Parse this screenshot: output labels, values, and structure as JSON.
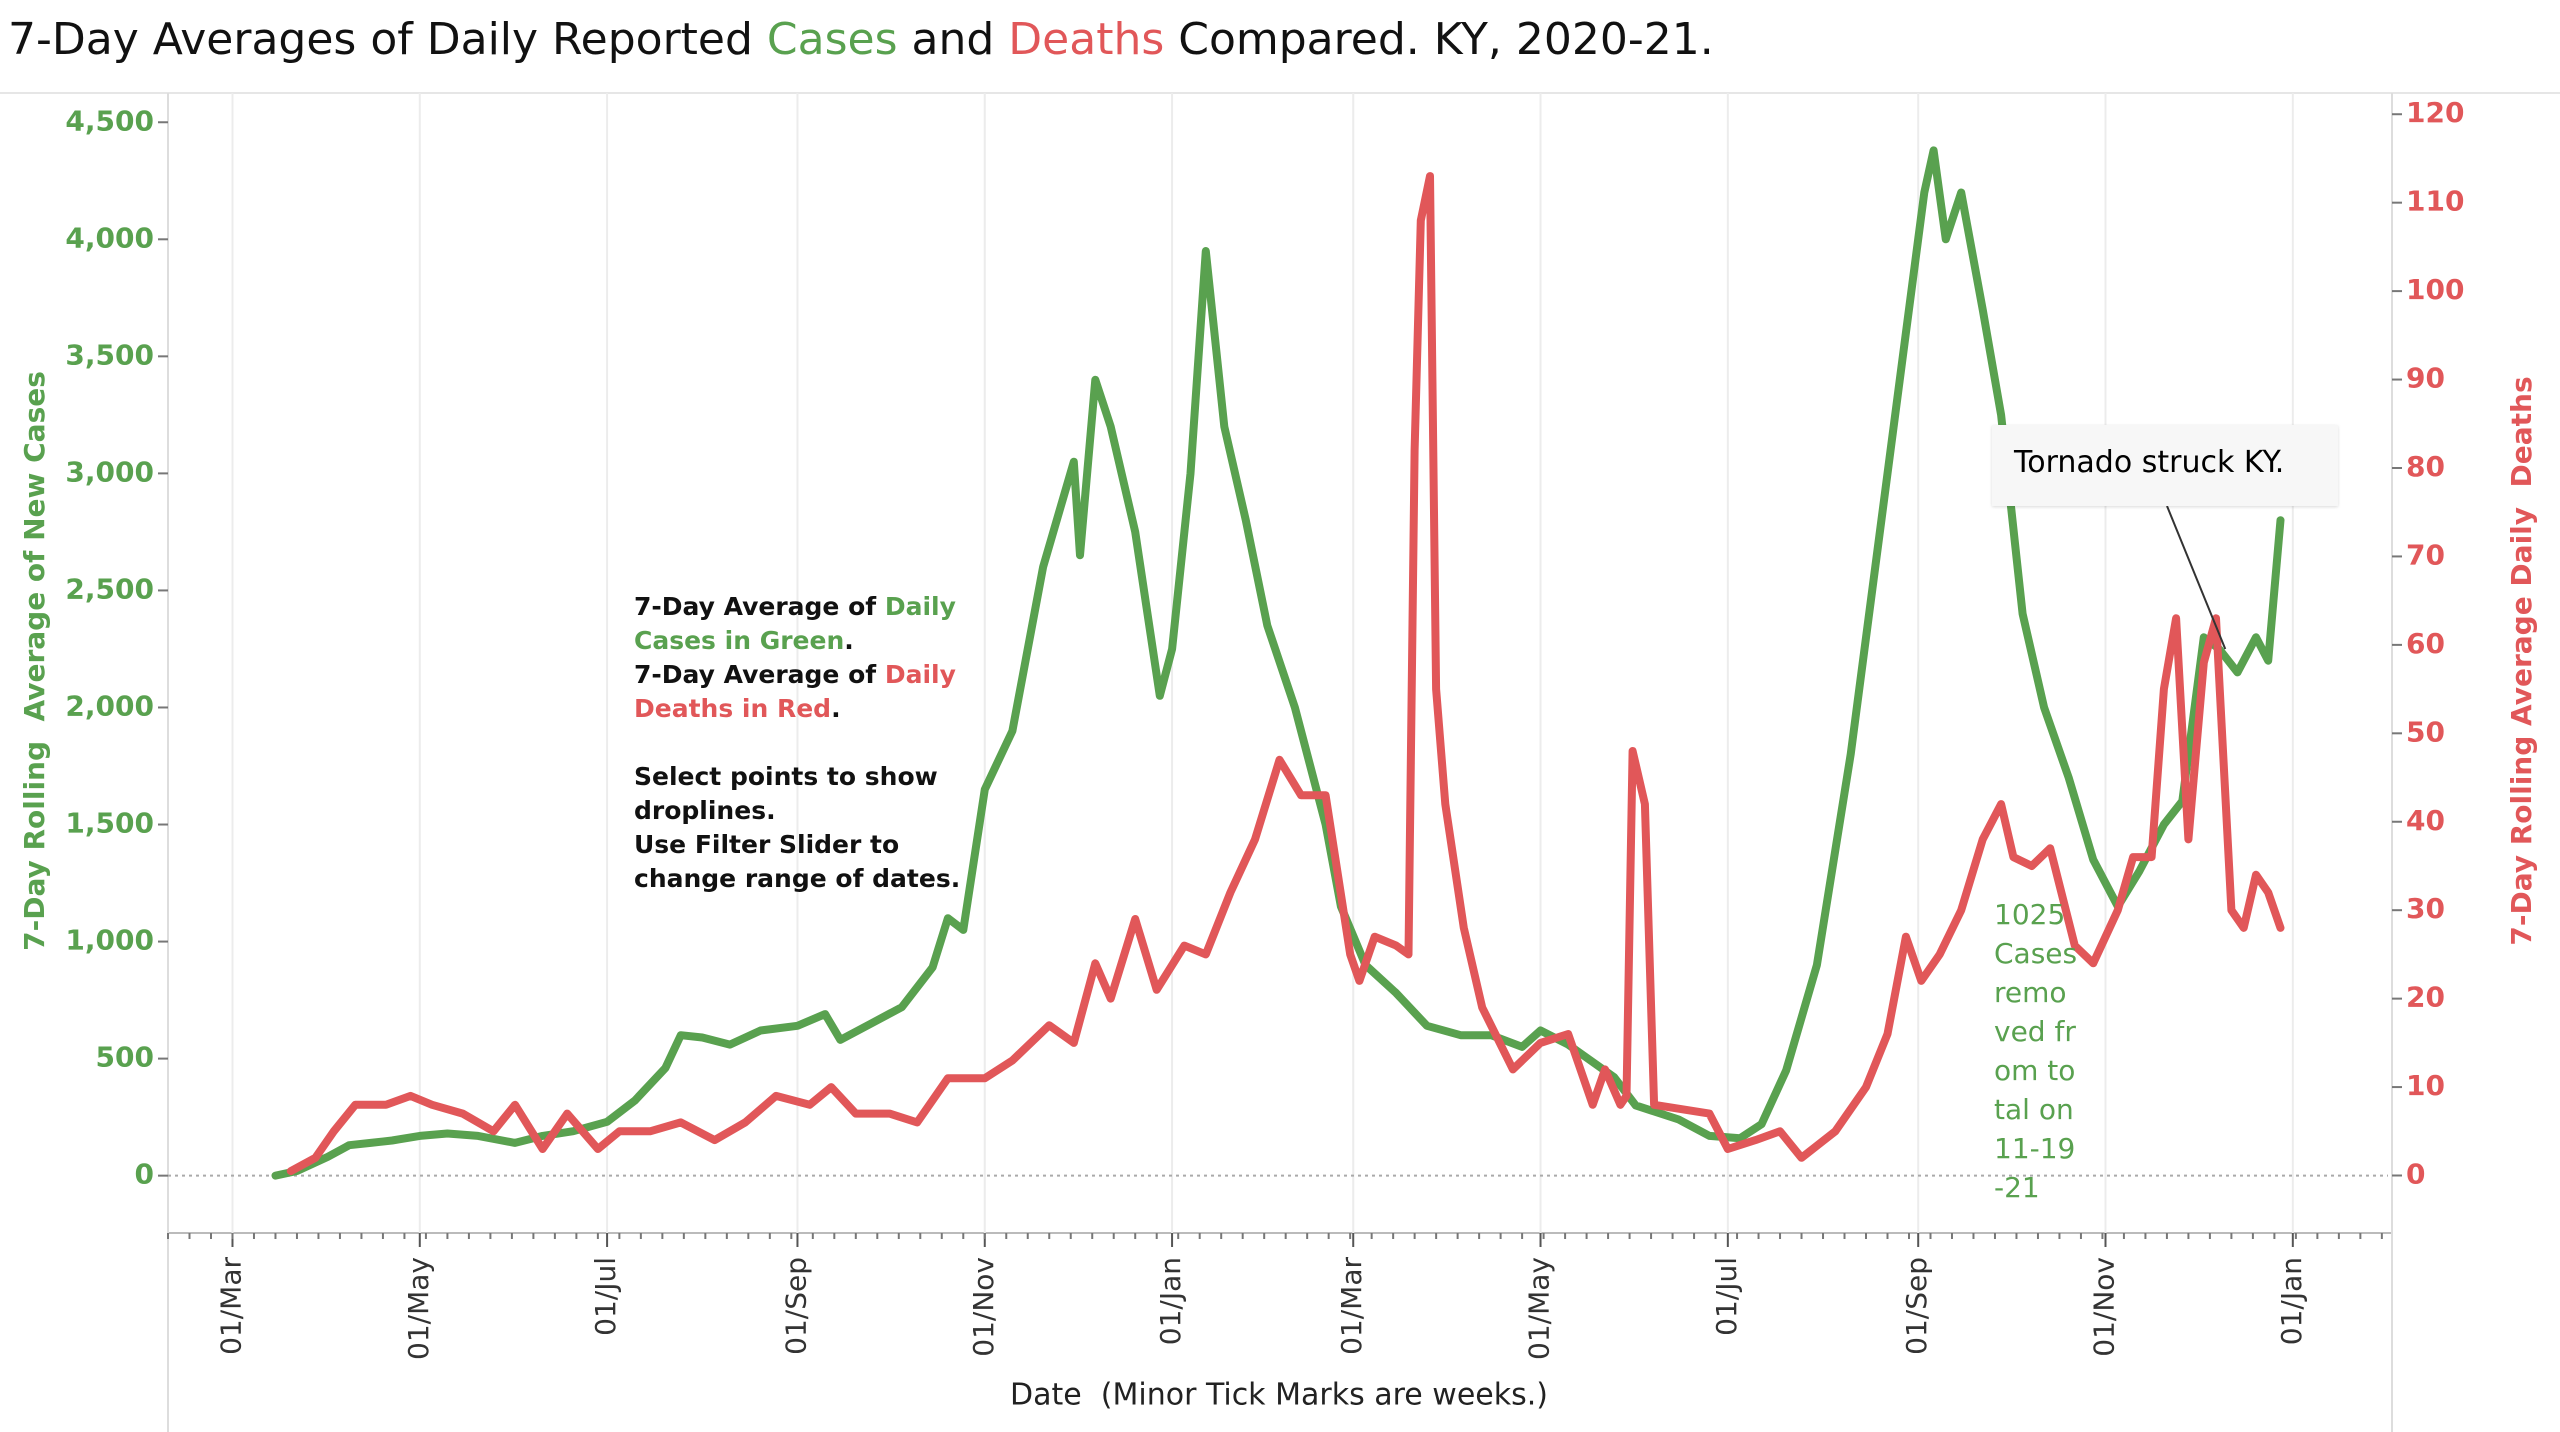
{
  "chart_data": {
    "type": "line",
    "title_parts": [
      {
        "text": "7-Day Averages of Daily Reported ",
        "color": "#111111"
      },
      {
        "text": "Cases",
        "color": "#59a14f"
      },
      {
        "text": " and ",
        "color": "#111111"
      },
      {
        "text": "Deaths",
        "color": "#e15759"
      },
      {
        "text": " Compared. KY, 2020-21.",
        "color": "#111111"
      }
    ],
    "x_label": "Date  (Minor Tick Marks are weeks.)",
    "y_label": "7-Day Rolling  Average of New Cases",
    "y2_label": "7-Day Rolling Average Daily  Deaths",
    "xlim": [
      "2020-02-09",
      "2022-02-01"
    ],
    "xticks": [
      {
        "value": "2020-03-01",
        "label": "01/Mar"
      },
      {
        "value": "2020-05-01",
        "label": "01/May"
      },
      {
        "value": "2020-07-01",
        "label": "01/Jul"
      },
      {
        "value": "2020-09-01",
        "label": "01/Sep"
      },
      {
        "value": "2020-11-01",
        "label": "01/Nov"
      },
      {
        "value": "2021-01-01",
        "label": "01/Jan"
      },
      {
        "value": "2021-03-01",
        "label": "01/Mar"
      },
      {
        "value": "2021-05-01",
        "label": "01/May"
      },
      {
        "value": "2021-07-01",
        "label": "01/Jul"
      },
      {
        "value": "2021-09-01",
        "label": "01/Sep"
      },
      {
        "value": "2021-11-01",
        "label": "01/Nov"
      },
      {
        "value": "2022-01-01",
        "label": "01/Jan"
      }
    ],
    "ylim": [
      -245,
      4625
    ],
    "yticks": [
      0,
      500,
      {
        "value": 1000,
        "label": "1,000"
      },
      {
        "value": 1500,
        "label": "1,500"
      },
      {
        "value": 2000,
        "label": "2,000"
      },
      {
        "value": 2500,
        "label": "2,500"
      },
      {
        "value": 3000,
        "label": "3,000"
      },
      {
        "value": 3500,
        "label": "3,500"
      },
      {
        "value": 4000,
        "label": "4,000"
      },
      {
        "value": 4500,
        "label": "4,500"
      }
    ],
    "y2lim": [
      -6.5,
      122.4
    ],
    "y2ticks": [
      0,
      10,
      20,
      30,
      40,
      50,
      60,
      70,
      80,
      90,
      100,
      110,
      120
    ],
    "y_color": "#59a14f",
    "y2_color": "#e15759",
    "grid": true,
    "series": [
      {
        "color": "#59a14f",
        "axis": "y",
        "x": [
          "2020-03-15",
          "2020-03-22",
          "2020-04-01",
          "2020-04-08",
          "2020-04-15",
          "2020-04-22",
          "2020-05-01",
          "2020-05-10",
          "2020-05-20",
          "2020-06-01",
          "2020-06-10",
          "2020-06-20",
          "2020-07-01",
          "2020-07-10",
          "2020-07-20",
          "2020-07-25",
          "2020-08-01",
          "2020-08-10",
          "2020-08-20",
          "2020-09-01",
          "2020-09-10",
          "2020-09-15",
          "2020-09-25",
          "2020-10-05",
          "2020-10-15",
          "2020-10-20",
          "2020-10-25",
          "2020-11-01",
          "2020-11-10",
          "2020-11-20",
          "2020-11-30",
          "2020-12-02",
          "2020-12-07",
          "2020-12-12",
          "2020-12-20",
          "2020-12-28",
          "2021-01-01",
          "2021-01-07",
          "2021-01-12",
          "2021-01-18",
          "2021-01-25",
          "2021-02-01",
          "2021-02-10",
          "2021-02-20",
          "2021-02-25",
          "2021-03-05",
          "2021-03-15",
          "2021-03-25",
          "2021-04-05",
          "2021-04-15",
          "2021-04-25",
          "2021-05-01",
          "2021-05-10",
          "2021-05-25",
          "2021-06-01",
          "2021-06-15",
          "2021-06-25",
          "2021-07-05",
          "2021-07-12",
          "2021-07-20",
          "2021-07-30",
          "2021-08-10",
          "2021-08-20",
          "2021-08-28",
          "2021-09-03",
          "2021-09-06",
          "2021-09-10",
          "2021-09-15",
          "2021-09-22",
          "2021-09-28",
          "2021-10-05",
          "2021-10-12",
          "2021-10-20",
          "2021-10-28",
          "2021-11-05",
          "2021-11-12",
          "2021-11-20",
          "2021-11-26",
          "2021-12-03",
          "2021-12-08",
          "2021-12-14",
          "2021-12-20",
          "2021-12-24",
          "2021-12-28"
        ],
        "values": [
          0,
          20,
          80,
          130,
          140,
          150,
          170,
          180,
          170,
          140,
          170,
          190,
          230,
          320,
          460,
          600,
          590,
          560,
          620,
          640,
          690,
          580,
          650,
          720,
          890,
          1100,
          1050,
          1650,
          1900,
          2600,
          3050,
          2650,
          3400,
          3200,
          2750,
          2050,
          2250,
          3000,
          3950,
          3200,
          2800,
          2350,
          2000,
          1500,
          1150,
          900,
          780,
          640,
          600,
          600,
          550,
          620,
          560,
          420,
          300,
          240,
          170,
          160,
          220,
          450,
          900,
          1800,
          2800,
          3600,
          4200,
          4380,
          4000,
          4200,
          3700,
          3250,
          2400,
          2000,
          1700,
          1350,
          1150,
          1300,
          1500,
          1600,
          2300,
          2250,
          2150,
          2300,
          2200,
          2800
        ]
      },
      {
        "color": "#e15759",
        "axis": "y2",
        "x": [
          "2020-03-20",
          "2020-03-28",
          "2020-04-03",
          "2020-04-10",
          "2020-04-20",
          "2020-04-28",
          "2020-05-05",
          "2020-05-15",
          "2020-05-25",
          "2020-06-01",
          "2020-06-10",
          "2020-06-18",
          "2020-06-28",
          "2020-07-05",
          "2020-07-15",
          "2020-07-25",
          "2020-08-05",
          "2020-08-15",
          "2020-08-25",
          "2020-09-05",
          "2020-09-12",
          "2020-09-20",
          "2020-10-01",
          "2020-10-10",
          "2020-10-20",
          "2020-11-01",
          "2020-11-10",
          "2020-11-22",
          "2020-11-30",
          "2020-12-07",
          "2020-12-12",
          "2020-12-20",
          "2020-12-27",
          "2021-01-05",
          "2021-01-12",
          "2021-01-20",
          "2021-01-28",
          "2021-02-05",
          "2021-02-12",
          "2021-02-20",
          "2021-02-28",
          "2021-03-03",
          "2021-03-08",
          "2021-03-15",
          "2021-03-19",
          "2021-03-21",
          "2021-03-23",
          "2021-03-26",
          "2021-03-28",
          "2021-03-31",
          "2021-04-06",
          "2021-04-12",
          "2021-04-22",
          "2021-05-01",
          "2021-05-10",
          "2021-05-18",
          "2021-05-22",
          "2021-05-27",
          "2021-05-29",
          "2021-05-31",
          "2021-06-04",
          "2021-06-07",
          "2021-06-25",
          "2021-07-01",
          "2021-07-10",
          "2021-07-18",
          "2021-07-25",
          "2021-08-05",
          "2021-08-15",
          "2021-08-22",
          "2021-08-28",
          "2021-09-02",
          "2021-09-08",
          "2021-09-15",
          "2021-09-22",
          "2021-09-28",
          "2021-10-02",
          "2021-10-08",
          "2021-10-14",
          "2021-10-22",
          "2021-10-28",
          "2021-11-05",
          "2021-11-10",
          "2021-11-16",
          "2021-11-20",
          "2021-11-24",
          "2021-11-28",
          "2021-12-03",
          "2021-12-07",
          "2021-12-12",
          "2021-12-16",
          "2021-12-20",
          "2021-12-24",
          "2021-12-28"
        ],
        "values": [
          0.5,
          2,
          5,
          8,
          8,
          9,
          8,
          7,
          5,
          8,
          3,
          7,
          3,
          5,
          5,
          6,
          4,
          6,
          9,
          8,
          10,
          7,
          7,
          6,
          11,
          11,
          13,
          17,
          15,
          24,
          20,
          29,
          21,
          26,
          25,
          32,
          38,
          47,
          43,
          43,
          25,
          22,
          27,
          26,
          25,
          82,
          108,
          113,
          55,
          42,
          28,
          19,
          12,
          15,
          16,
          8,
          12,
          8,
          9,
          48,
          42,
          8,
          7,
          3,
          4,
          5,
          2,
          5,
          10,
          16,
          27,
          22,
          25,
          30,
          38,
          42,
          36,
          35,
          37,
          26,
          24,
          30,
          36,
          36,
          55,
          63,
          38,
          58,
          63,
          30,
          28,
          34,
          32,
          28
        ]
      }
    ],
    "notes": [
      [
        {
          "text": "7-Day Average of ",
          "color": "#111111"
        },
        {
          "text": "Daily Cases in Green",
          "color": "#59a14f"
        },
        {
          "text": ".",
          "color": "#111111"
        }
      ],
      [
        {
          "text": "7-Day Average of ",
          "color": "#111111"
        },
        {
          "text": "Daily Deaths in Red",
          "color": "#e15759"
        },
        {
          "text": ".",
          "color": "#111111"
        }
      ],
      [
        {
          "text": "Select points to show droplines.",
          "color": "#111111"
        }
      ],
      [
        {
          "text": "Use Filter Slider to change range of dates.",
          "color": "#111111"
        }
      ]
    ],
    "annotations": [
      {
        "text": "Tornado struck KY.",
        "x": "2021-12-10",
        "y": 2250
      },
      {
        "text": "1025 Cases removed from total on 11-19-21",
        "color": "#59a14f"
      }
    ]
  }
}
